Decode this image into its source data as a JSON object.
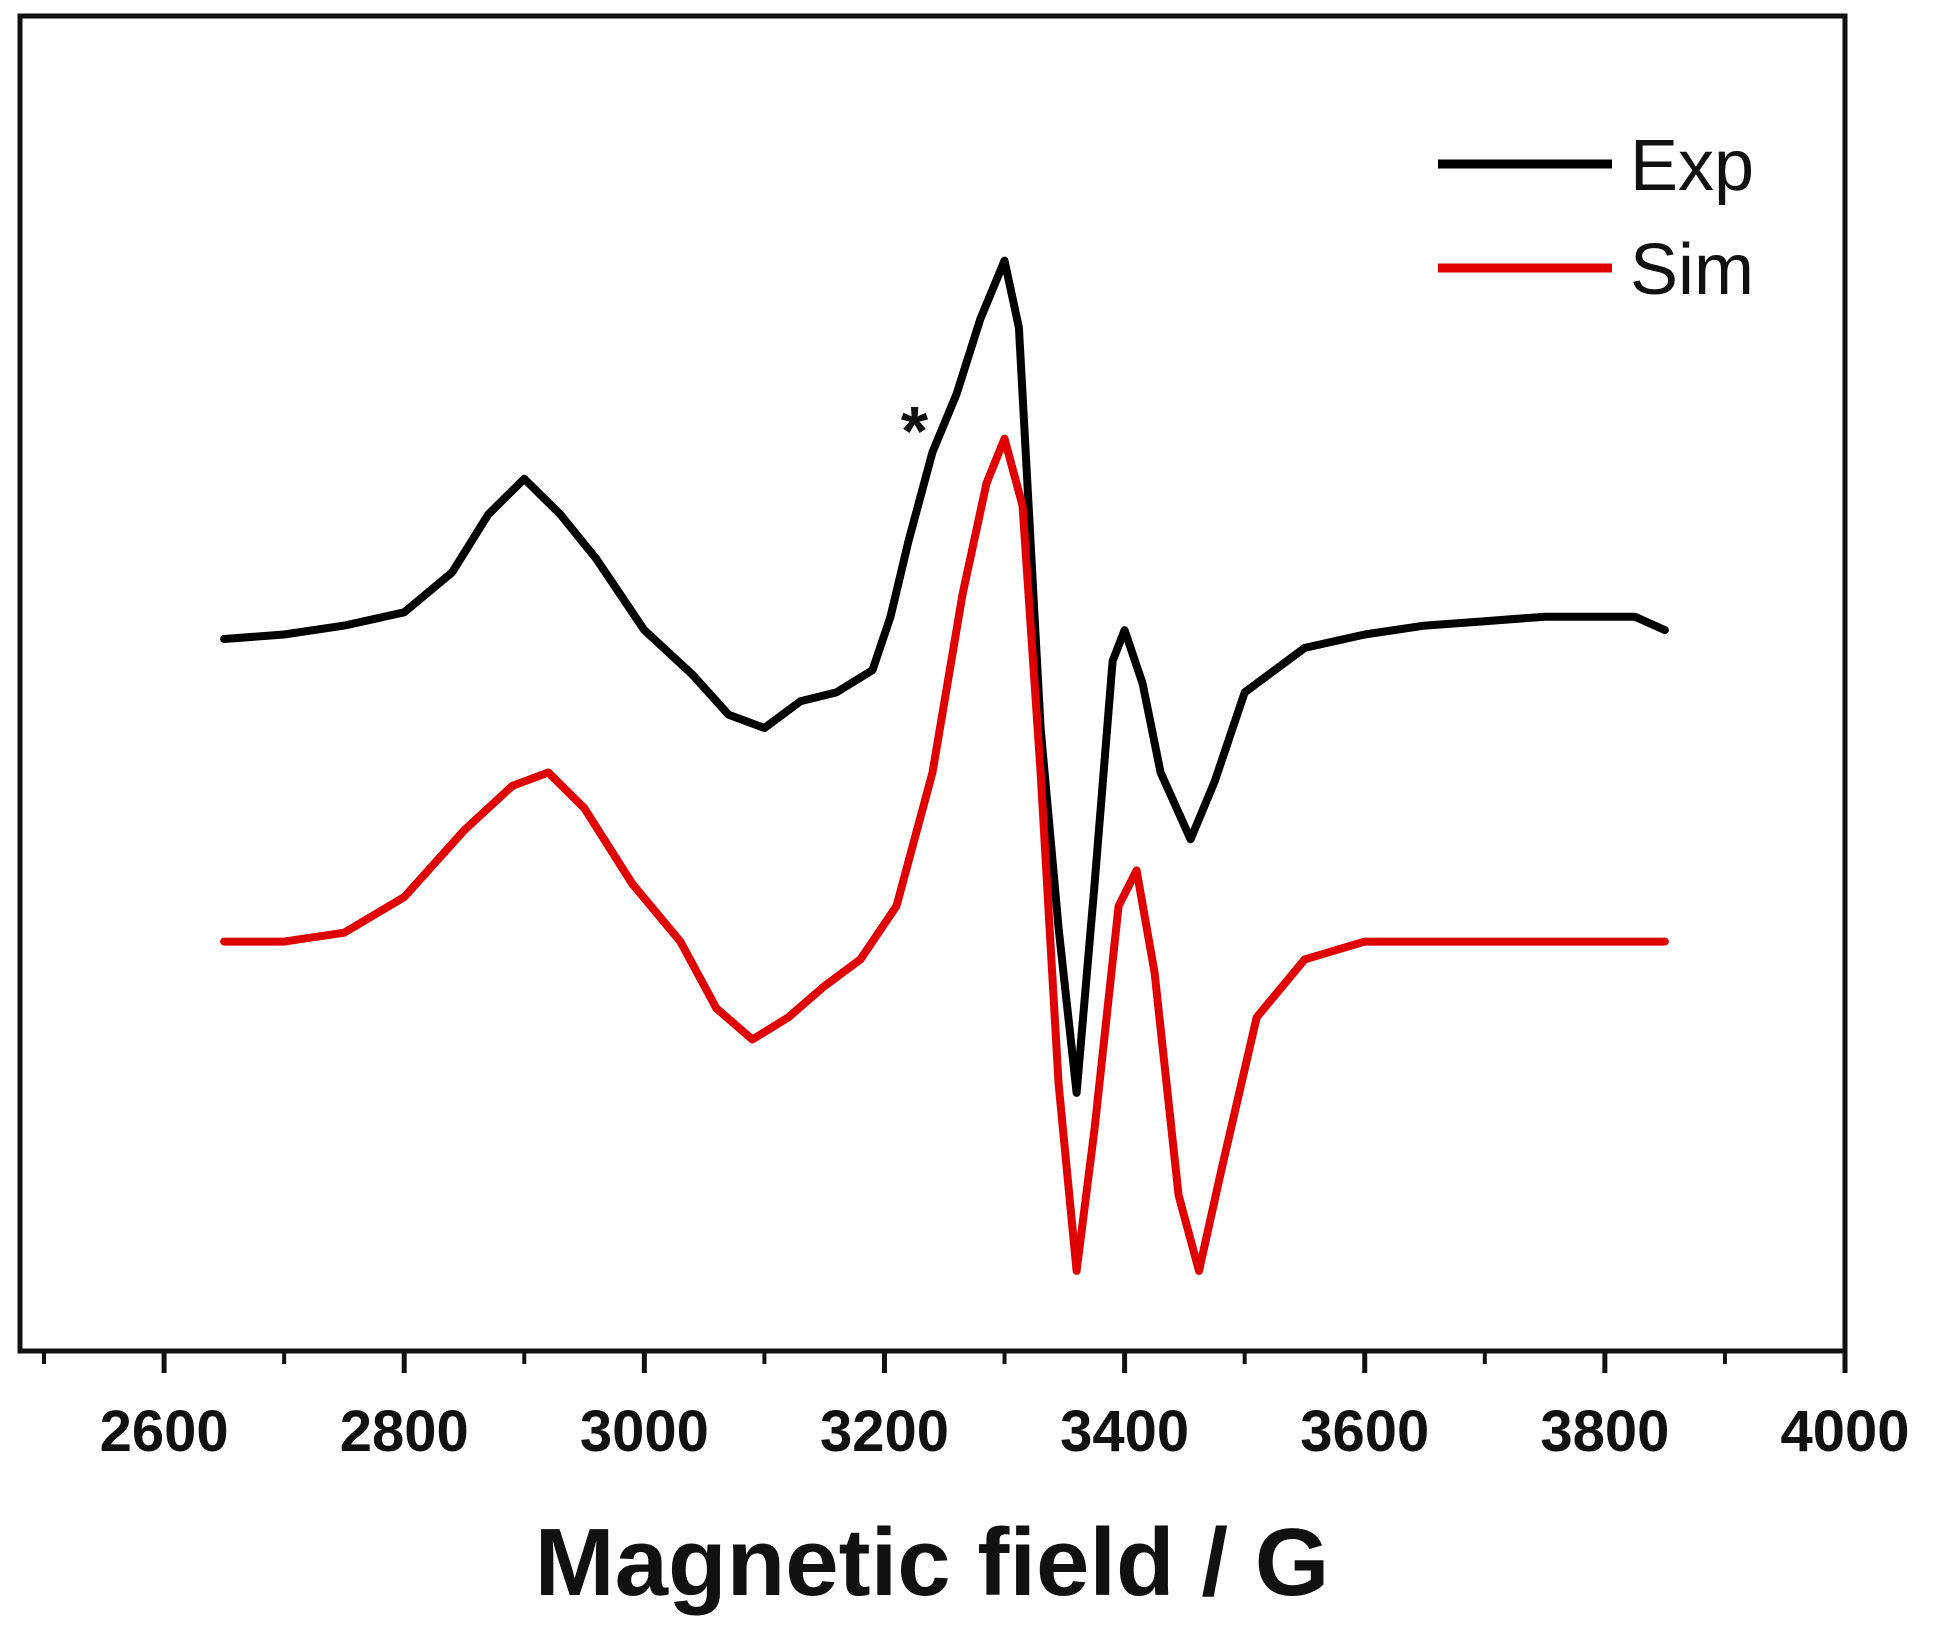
{
  "chart_data": {
    "type": "line",
    "title": "",
    "xlabel": "Magnetic field / G",
    "ylabel": "",
    "xlim": [
      2480,
      4000
    ],
    "ylim": [
      -1.6,
      1.4
    ],
    "grid": false,
    "legend_position": "top-right",
    "xticks": [
      2600,
      2800,
      3000,
      3200,
      3400,
      3600,
      3800,
      4000
    ],
    "xtick_labels": [
      "2600",
      "2800",
      "3000",
      "3200",
      "3400",
      "3600",
      "3800",
      "4000"
    ],
    "x_minor_ticks": [
      2500,
      2700,
      2900,
      3100,
      3300,
      3500,
      3700,
      3900
    ],
    "series": [
      {
        "name": "Exp",
        "color": "#000000",
        "points": [
          [
            2650,
            0.0
          ],
          [
            2700,
            0.01
          ],
          [
            2750,
            0.03
          ],
          [
            2800,
            0.06
          ],
          [
            2840,
            0.15
          ],
          [
            2870,
            0.28
          ],
          [
            2900,
            0.36
          ],
          [
            2930,
            0.28
          ],
          [
            2960,
            0.18
          ],
          [
            3000,
            0.02
          ],
          [
            3040,
            -0.08
          ],
          [
            3070,
            -0.17
          ],
          [
            3100,
            -0.2
          ],
          [
            3130,
            -0.14
          ],
          [
            3160,
            -0.12
          ],
          [
            3190,
            -0.07
          ],
          [
            3205,
            0.05
          ],
          [
            3220,
            0.22
          ],
          [
            3240,
            0.42
          ],
          [
            3260,
            0.55
          ],
          [
            3280,
            0.72
          ],
          [
            3300,
            0.85
          ],
          [
            3312,
            0.7
          ],
          [
            3320,
            0.3
          ],
          [
            3330,
            -0.2
          ],
          [
            3345,
            -0.65
          ],
          [
            3360,
            -1.02
          ],
          [
            3375,
            -0.55
          ],
          [
            3390,
            -0.05
          ],
          [
            3400,
            0.02
          ],
          [
            3415,
            -0.1
          ],
          [
            3430,
            -0.3
          ],
          [
            3455,
            -0.45
          ],
          [
            3475,
            -0.32
          ],
          [
            3500,
            -0.12
          ],
          [
            3550,
            -0.02
          ],
          [
            3600,
            0.01
          ],
          [
            3650,
            0.03
          ],
          [
            3700,
            0.04
          ],
          [
            3750,
            0.05
          ],
          [
            3800,
            0.05
          ],
          [
            3825,
            0.05
          ],
          [
            3850,
            0.02
          ]
        ]
      },
      {
        "name": "Sim",
        "color": "#e00000",
        "points": [
          [
            2650,
            -0.68
          ],
          [
            2700,
            -0.68
          ],
          [
            2750,
            -0.66
          ],
          [
            2800,
            -0.58
          ],
          [
            2850,
            -0.43
          ],
          [
            2890,
            -0.33
          ],
          [
            2920,
            -0.3
          ],
          [
            2950,
            -0.38
          ],
          [
            2990,
            -0.55
          ],
          [
            3030,
            -0.68
          ],
          [
            3060,
            -0.83
          ],
          [
            3090,
            -0.9
          ],
          [
            3120,
            -0.85
          ],
          [
            3150,
            -0.78
          ],
          [
            3180,
            -0.72
          ],
          [
            3210,
            -0.6
          ],
          [
            3240,
            -0.3
          ],
          [
            3265,
            0.1
          ],
          [
            3285,
            0.35
          ],
          [
            3300,
            0.45
          ],
          [
            3315,
            0.3
          ],
          [
            3330,
            -0.3
          ],
          [
            3345,
            -1.0
          ],
          [
            3360,
            -1.42
          ],
          [
            3375,
            -1.1
          ],
          [
            3395,
            -0.6
          ],
          [
            3410,
            -0.52
          ],
          [
            3425,
            -0.75
          ],
          [
            3445,
            -1.25
          ],
          [
            3462,
            -1.42
          ],
          [
            3480,
            -1.2
          ],
          [
            3510,
            -0.85
          ],
          [
            3550,
            -0.72
          ],
          [
            3600,
            -0.68
          ],
          [
            3700,
            -0.68
          ],
          [
            3850,
            -0.68
          ]
        ]
      }
    ],
    "annotations": [
      {
        "text": "*",
        "x": 3225,
        "y": 0.47
      }
    ]
  }
}
